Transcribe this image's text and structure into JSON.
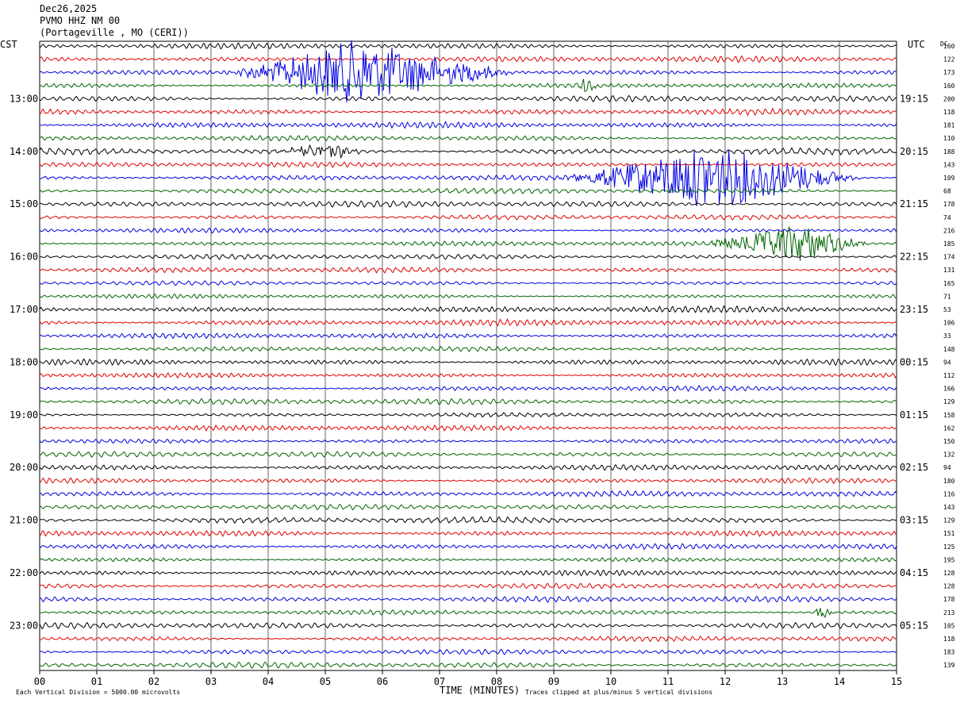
{
  "header": {
    "date": "Dec26,2025",
    "station": "PVMO HHZ NM 00",
    "location": "(Portageville , MO (CERI))"
  },
  "left_zone": "CST",
  "right_zone": "UTC",
  "dc_header": "DC",
  "footer": {
    "scale_note": "Each Vertical Division = 5000.00 microvolts",
    "clip_note": "Traces clipped at plus/minus 5 vertical divisions"
  },
  "chart_data": {
    "type": "line",
    "title": "",
    "xlabel": "TIME (MINUTES)",
    "ylabel": "",
    "xlim": [
      0,
      15
    ],
    "x_ticks": [
      "00",
      "01",
      "02",
      "03",
      "04",
      "05",
      "06",
      "07",
      "08",
      "09",
      "10",
      "11",
      "12",
      "13",
      "14",
      "15"
    ],
    "grid": true,
    "trace_colors": [
      "#000000",
      "#e00000",
      "#0000e0",
      "#006400"
    ],
    "trace_count": 48,
    "minutes_per_trace": 15,
    "left_time_labels": [
      {
        "row": 4,
        "label": "13:00"
      },
      {
        "row": 8,
        "label": "14:00"
      },
      {
        "row": 12,
        "label": "15:00"
      },
      {
        "row": 16,
        "label": "16:00"
      },
      {
        "row": 20,
        "label": "17:00"
      },
      {
        "row": 24,
        "label": "18:00"
      },
      {
        "row": 28,
        "label": "19:00"
      },
      {
        "row": 32,
        "label": "20:00"
      },
      {
        "row": 36,
        "label": "21:00"
      },
      {
        "row": 40,
        "label": "22:00"
      },
      {
        "row": 44,
        "label": "23:00"
      }
    ],
    "right_time_labels": [
      {
        "row": 4,
        "label": "19:15"
      },
      {
        "row": 8,
        "label": "20:15"
      },
      {
        "row": 12,
        "label": "21:15"
      },
      {
        "row": 16,
        "label": "22:15"
      },
      {
        "row": 20,
        "label": "23:15"
      },
      {
        "row": 24,
        "label": "00:15"
      },
      {
        "row": 28,
        "label": "01:15"
      },
      {
        "row": 32,
        "label": "02:15"
      },
      {
        "row": 36,
        "label": "03:15"
      },
      {
        "row": 40,
        "label": "04:15"
      },
      {
        "row": 44,
        "label": "05:15"
      }
    ],
    "dc_offsets": [
      "160",
      "122",
      "173",
      "160",
      "200",
      "118",
      "181",
      "110",
      "188",
      "143",
      "109",
      "68",
      "178",
      "74",
      "216",
      "185",
      "174",
      "131",
      "165",
      "71",
      "53",
      "106",
      "33",
      "148",
      "94",
      "112",
      "166",
      "129",
      "158",
      "162",
      "150",
      "132",
      "94",
      "180",
      "116",
      "143",
      "129",
      "151",
      "125",
      "195",
      "128",
      "128",
      "178",
      "213",
      "105",
      "118",
      "183",
      "139"
    ],
    "events": [
      {
        "row": 2,
        "start_min": 3.2,
        "peak_min": 5.5,
        "end_min": 8.5,
        "peak_divisions": 5
      },
      {
        "row": 3,
        "start_min": 9.2,
        "peak_min": 9.6,
        "end_min": 10.0,
        "peak_divisions": 1
      },
      {
        "row": 8,
        "start_min": 3.9,
        "peak_min": 5.2,
        "end_min": 5.7,
        "peak_divisions": 1
      },
      {
        "row": 10,
        "start_min": 9.0,
        "peak_min": 11.8,
        "end_min": 14.5,
        "peak_divisions": 5
      },
      {
        "row": 15,
        "start_min": 11.5,
        "peak_min": 13.3,
        "end_min": 14.6,
        "peak_divisions": 3
      },
      {
        "row": 43,
        "start_min": 13.5,
        "peak_min": 13.7,
        "end_min": 14.0,
        "peak_divisions": 1
      }
    ]
  }
}
